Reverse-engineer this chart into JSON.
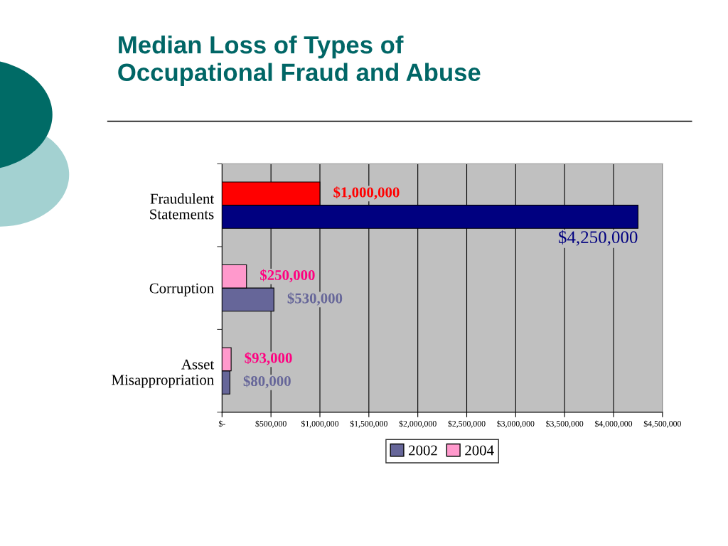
{
  "chart_data": {
    "type": "bar",
    "orientation": "horizontal",
    "title": "Median Loss of Types of\nOccupational Fraud and Abuse",
    "categories": [
      "Fraudulent\nStatements",
      "Corruption",
      "Asset\nMisappropriation"
    ],
    "series": [
      {
        "name": "2002",
        "color": "#666699",
        "colors": [
          "#000080",
          "#666699",
          "#666699"
        ],
        "values": [
          4250000,
          530000,
          80000
        ],
        "value_labels": [
          "$4,250,000",
          "$530,000",
          "$80,000"
        ]
      },
      {
        "name": "2004",
        "color": "#ff99cc",
        "colors": [
          "#ff0000",
          "#ff99cc",
          "#ff99cc"
        ],
        "values": [
          1000000,
          250000,
          93000
        ],
        "value_labels": [
          "$1,000,000",
          "$250,000",
          "$93,000"
        ]
      }
    ],
    "xlim": [
      0,
      4500000
    ],
    "xticks": [
      {
        "value": 0,
        "label": "$-"
      },
      {
        "value": 500000,
        "label": "$500,000"
      },
      {
        "value": 1000000,
        "label": "$1,000,000"
      },
      {
        "value": 1500000,
        "label": "$1,500,000"
      },
      {
        "value": 2000000,
        "label": "$2,000,000"
      },
      {
        "value": 2500000,
        "label": "$2,500,000"
      },
      {
        "value": 3000000,
        "label": "$3,000,000"
      },
      {
        "value": 3500000,
        "label": "$3,500,000"
      },
      {
        "value": 4000000,
        "label": "$4,000,000"
      },
      {
        "value": 4500000,
        "label": "$4,500,000"
      }
    ],
    "grid": "x",
    "legend": "bottom"
  }
}
